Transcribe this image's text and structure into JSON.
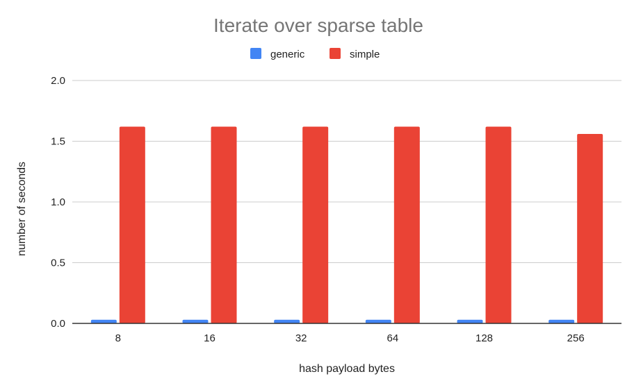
{
  "chart_data": {
    "type": "bar",
    "title": "Iterate over sparse table",
    "xlabel": "hash payload bytes",
    "ylabel": "number of seconds",
    "categories": [
      "8",
      "16",
      "32",
      "64",
      "128",
      "256"
    ],
    "series": [
      {
        "name": "generic",
        "color": "#4285f4",
        "values": [
          0.03,
          0.03,
          0.03,
          0.03,
          0.03,
          0.03
        ]
      },
      {
        "name": "simple",
        "color": "#ea4335",
        "values": [
          1.62,
          1.62,
          1.62,
          1.62,
          1.62,
          1.56
        ]
      }
    ],
    "ylim": [
      0,
      2
    ],
    "yticks": [
      "0.0",
      "0.5",
      "1.0",
      "1.5",
      "2.0"
    ],
    "grid": true,
    "legend_position": "top-center"
  }
}
